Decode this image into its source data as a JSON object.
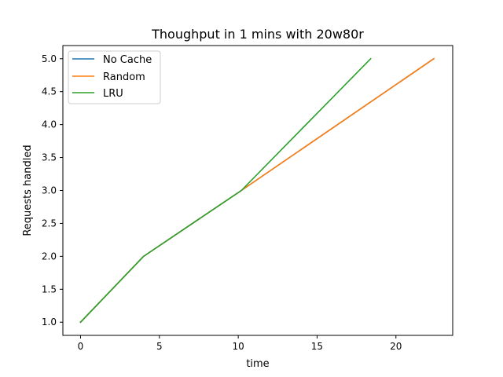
{
  "chart_data": {
    "type": "line",
    "title": "Thoughput in 1 mins with 20w80r",
    "xlabel": "time",
    "ylabel": "Requests handled",
    "xlim": [
      -1.12,
      23.6
    ],
    "ylim": [
      0.8,
      5.2
    ],
    "xticks": [
      0,
      5,
      10,
      15,
      20
    ],
    "xtick_labels": [
      "0",
      "5",
      "10",
      "15",
      "20"
    ],
    "yticks": [
      1.0,
      1.5,
      2.0,
      2.5,
      3.0,
      3.5,
      4.0,
      4.5,
      5.0
    ],
    "ytick_labels": [
      "1.0",
      "1.5",
      "2.0",
      "2.5",
      "3.0",
      "3.5",
      "4.0",
      "4.5",
      "5.0"
    ],
    "grid": false,
    "legend_position": "upper-left",
    "series": [
      {
        "name": "No Cache",
        "color": "#1f77b4",
        "x": [
          0,
          4,
          10.2,
          22.4
        ],
        "y": [
          1,
          2,
          3,
          5
        ]
      },
      {
        "name": "Random",
        "color": "#ff7f0e",
        "x": [
          0,
          4,
          10.2,
          22.4
        ],
        "y": [
          1,
          2,
          3,
          5
        ]
      },
      {
        "name": "LRU",
        "color": "#2ca02c",
        "x": [
          0,
          4,
          10.2,
          18.4
        ],
        "y": [
          1,
          2,
          3,
          5
        ]
      }
    ]
  }
}
